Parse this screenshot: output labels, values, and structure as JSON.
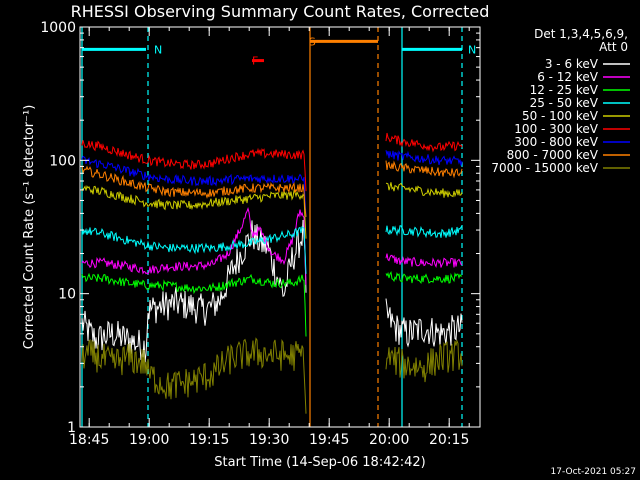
{
  "chart_data": {
    "type": "line",
    "title": "RHESSI Observing Summary Count Rates, Corrected",
    "xlabel": "Start Time (14-Sep-06 18:42:42)",
    "ylabel": "Corrected Count Rate (s⁻¹ detector⁻¹)",
    "x_unit": "minutes after 18:42:42",
    "xlim": [
      0,
      100
    ],
    "ylim": [
      1,
      1000
    ],
    "y_scale": "log",
    "x_ticks": [
      {
        "t": 2.3,
        "label": "18:45"
      },
      {
        "t": 17.3,
        "label": "19:00"
      },
      {
        "t": 32.3,
        "label": "19:15"
      },
      {
        "t": 47.3,
        "label": "19:30"
      },
      {
        "t": 62.3,
        "label": "19:45"
      },
      {
        "t": 77.3,
        "label": "20:00"
      },
      {
        "t": 92.3,
        "label": "20:15"
      }
    ],
    "y_ticks": [
      {
        "v": 1,
        "label": "1"
      },
      {
        "v": 10,
        "label": "10"
      },
      {
        "v": 100,
        "label": "100"
      },
      {
        "v": 1000,
        "label": "1000"
      }
    ],
    "legend_header": [
      "Det 1,3,4,5,6,9,",
      "Att 0"
    ],
    "legend_position": "right",
    "grid": false,
    "series": [
      {
        "name": "3 - 6 keV",
        "color": "#ffffff",
        "seg1": [
          [
            0.5,
            6
          ],
          [
            4,
            4.5
          ],
          [
            8,
            5
          ],
          [
            12,
            4.5
          ],
          [
            16.5,
            4
          ],
          [
            17,
            7.5
          ],
          [
            20,
            8
          ],
          [
            24,
            8.5
          ],
          [
            28,
            8
          ],
          [
            31,
            7.5
          ],
          [
            33,
            8
          ],
          [
            35,
            9
          ],
          [
            38,
            15
          ],
          [
            41,
            22
          ],
          [
            43,
            28
          ],
          [
            45,
            24
          ],
          [
            47,
            22
          ],
          [
            49,
            14
          ],
          [
            51,
            10
          ],
          [
            53,
            18
          ],
          [
            55,
            25
          ],
          [
            56,
            30
          ],
          [
            56.5,
            9
          ]
        ],
        "seg2": [
          [
            76.5,
            7
          ],
          [
            79,
            5.5
          ],
          [
            82,
            5
          ],
          [
            86,
            5.5
          ],
          [
            90,
            5
          ],
          [
            95.5,
            5.5
          ]
        ]
      },
      {
        "name": "6 - 12 keV",
        "color": "#ff00ff",
        "seg1": [
          [
            0.5,
            17
          ],
          [
            6,
            17
          ],
          [
            12,
            16
          ],
          [
            17,
            15
          ],
          [
            22,
            16
          ],
          [
            28,
            16
          ],
          [
            33,
            16.5
          ],
          [
            37,
            20
          ],
          [
            40,
            30
          ],
          [
            42,
            42
          ],
          [
            43,
            28
          ],
          [
            45,
            30
          ],
          [
            48,
            20
          ],
          [
            51,
            18
          ],
          [
            53,
            25
          ],
          [
            55,
            42
          ],
          [
            56,
            37
          ],
          [
            56.5,
            12
          ]
        ],
        "seg2": [
          [
            76.5,
            19
          ],
          [
            80,
            17.5
          ],
          [
            86,
            17
          ],
          [
            90,
            17
          ],
          [
            95.5,
            17
          ]
        ]
      },
      {
        "name": "12 - 25 keV",
        "color": "#00ff00",
        "seg1": [
          [
            0.5,
            13
          ],
          [
            6,
            13
          ],
          [
            12,
            12
          ],
          [
            17,
            11.5
          ],
          [
            22,
            11.5
          ],
          [
            28,
            11
          ],
          [
            33,
            11
          ],
          [
            38,
            12
          ],
          [
            43,
            13
          ],
          [
            48,
            12
          ],
          [
            53,
            12
          ],
          [
            56,
            13
          ],
          [
            56.5,
            5
          ]
        ],
        "seg2": [
          [
            76.5,
            14
          ],
          [
            80,
            13
          ],
          [
            86,
            13
          ],
          [
            90,
            13
          ],
          [
            95.5,
            13
          ]
        ]
      },
      {
        "name": "25 - 50 keV",
        "color": "#00ffff",
        "seg1": [
          [
            0.5,
            30
          ],
          [
            6,
            28
          ],
          [
            12,
            25
          ],
          [
            17,
            23
          ],
          [
            22,
            22
          ],
          [
            28,
            22
          ],
          [
            33,
            22
          ],
          [
            38,
            23
          ],
          [
            43,
            24
          ],
          [
            48,
            26
          ],
          [
            53,
            28
          ],
          [
            56,
            30
          ],
          [
            56.5,
            15
          ]
        ],
        "seg2": [
          [
            76.5,
            30
          ],
          [
            80,
            30
          ],
          [
            86,
            29
          ],
          [
            90,
            28
          ],
          [
            95.5,
            30
          ]
        ]
      },
      {
        "name": "50 - 100 keV",
        "color": "#cccc00",
        "seg1": [
          [
            0.5,
            62
          ],
          [
            6,
            58
          ],
          [
            12,
            52
          ],
          [
            17,
            48
          ],
          [
            22,
            46
          ],
          [
            28,
            46
          ],
          [
            33,
            48
          ],
          [
            38,
            50
          ],
          [
            43,
            52
          ],
          [
            48,
            54
          ],
          [
            53,
            55
          ],
          [
            56,
            56
          ],
          [
            56.5,
            25
          ]
        ],
        "seg2": [
          [
            76.5,
            64
          ],
          [
            80,
            62
          ],
          [
            86,
            59
          ],
          [
            90,
            57
          ],
          [
            95.5,
            56
          ]
        ]
      },
      {
        "name": "100 - 300 keV",
        "color": "#ff0000",
        "seg1": [
          [
            0.5,
            135
          ],
          [
            6,
            125
          ],
          [
            12,
            110
          ],
          [
            17,
            100
          ],
          [
            22,
            95
          ],
          [
            28,
            92
          ],
          [
            33,
            95
          ],
          [
            38,
            105
          ],
          [
            43,
            112
          ],
          [
            48,
            112
          ],
          [
            53,
            110
          ],
          [
            56,
            110
          ],
          [
            56.5,
            60
          ]
        ],
        "seg2": [
          [
            76.5,
            150
          ],
          [
            80,
            140
          ],
          [
            86,
            130
          ],
          [
            90,
            125
          ],
          [
            95.5,
            130
          ]
        ]
      },
      {
        "name": "300 - 800 keV",
        "color": "#0000ff",
        "seg1": [
          [
            0.5,
            100
          ],
          [
            6,
            93
          ],
          [
            12,
            83
          ],
          [
            17,
            76
          ],
          [
            22,
            72
          ],
          [
            28,
            70
          ],
          [
            33,
            70
          ],
          [
            38,
            72
          ],
          [
            43,
            73
          ],
          [
            48,
            73
          ],
          [
            53,
            73
          ],
          [
            56,
            72
          ],
          [
            56.5,
            40
          ]
        ],
        "seg2": [
          [
            76.5,
            112
          ],
          [
            80,
            107
          ],
          [
            86,
            103
          ],
          [
            90,
            100
          ],
          [
            95.5,
            98
          ]
        ]
      },
      {
        "name": "800 - 7000 keV",
        "color": "#ff8000",
        "seg1": [
          [
            0.5,
            85
          ],
          [
            6,
            77
          ],
          [
            12,
            68
          ],
          [
            17,
            62
          ],
          [
            22,
            58
          ],
          [
            28,
            57
          ],
          [
            33,
            57
          ],
          [
            38,
            60
          ],
          [
            43,
            62
          ],
          [
            48,
            62
          ],
          [
            53,
            62
          ],
          [
            56,
            62
          ],
          [
            56.5,
            35
          ]
        ],
        "seg2": [
          [
            76.5,
            92
          ],
          [
            80,
            88
          ],
          [
            86,
            84
          ],
          [
            90,
            81
          ],
          [
            95.5,
            80
          ]
        ]
      },
      {
        "name": "7000 - 15000 keV",
        "color": "#808000",
        "seg1": [
          [
            0.5,
            3.5
          ],
          [
            4,
            3.4
          ],
          [
            8,
            3
          ],
          [
            12,
            3.3
          ],
          [
            16.5,
            3
          ],
          [
            17,
            2.5
          ],
          [
            22,
            2
          ],
          [
            28,
            2.2
          ],
          [
            33,
            2.5
          ],
          [
            38,
            3.3
          ],
          [
            43,
            3.6
          ],
          [
            48,
            3.5
          ],
          [
            53,
            3.4
          ],
          [
            56,
            3.5
          ],
          [
            56.5,
            1
          ]
        ],
        "seg2": [
          [
            76.5,
            3.4
          ],
          [
            80,
            3
          ],
          [
            86,
            2.8
          ],
          [
            90,
            3.3
          ],
          [
            95.5,
            3.5
          ]
        ]
      }
    ],
    "annotations": [
      {
        "label": "N",
        "color": "#00ffff",
        "x": 17.0,
        "at_value": 680,
        "bar_from": 0.5,
        "bar_to": 16.5,
        "bar_value": 680
      },
      {
        "label": "N",
        "color": "#00ffff",
        "x": 95.5,
        "at_value": 680,
        "bar_from": 80.5,
        "bar_to": 95.5,
        "bar_value": 680
      },
      {
        "label": "F",
        "color": "#ff0000",
        "x": 41.5,
        "at_value": 560,
        "bar_from": 43.0,
        "bar_to": 46.0,
        "bar_value": 560
      },
      {
        "label": "S",
        "color": "#ff8000",
        "x": 55.7,
        "at_value": 780,
        "bar_from": 57.5,
        "bar_to": 74.5,
        "bar_value": 780
      }
    ],
    "vlines": [
      {
        "t": 0.5,
        "color": "#00ffff",
        "dashed": false
      },
      {
        "t": 17.0,
        "color": "#00ffff",
        "dashed": true
      },
      {
        "t": 80.5,
        "color": "#00ffff",
        "dashed": false
      },
      {
        "t": 95.5,
        "color": "#00ffff",
        "dashed": true
      },
      {
        "t": 57.5,
        "color": "#ff8000",
        "dashed": false
      },
      {
        "t": 74.5,
        "color": "#ff8000",
        "dashed": true
      }
    ]
  },
  "footer": {
    "timestamp": "17-Oct-2021 05:27"
  }
}
